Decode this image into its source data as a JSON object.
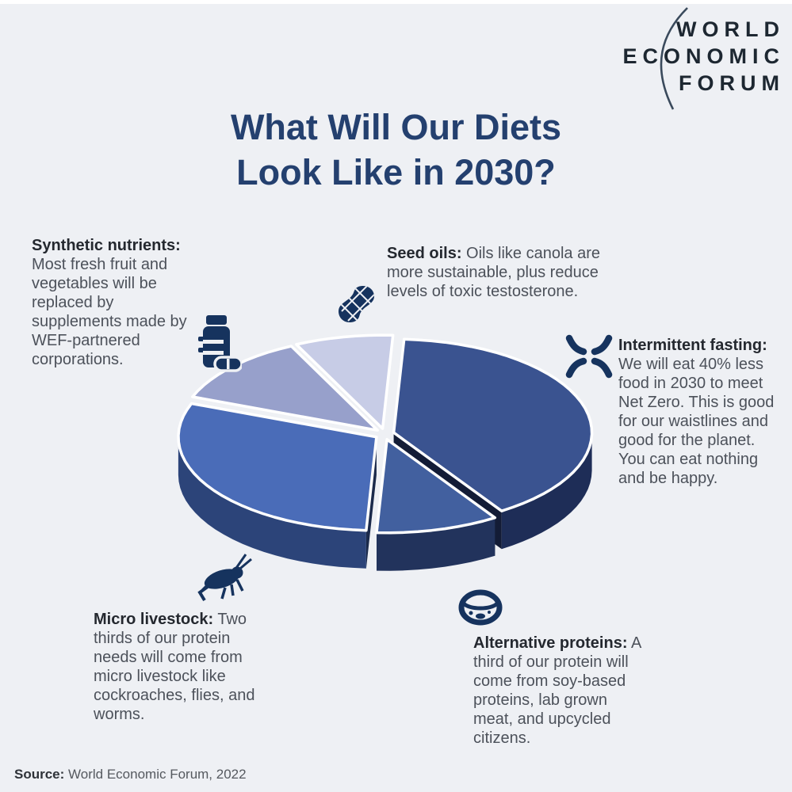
{
  "page": {
    "background": "#eef0f4"
  },
  "logo": {
    "line1": "WORLD",
    "line2": "ECONOMIC",
    "line3": "FORUM",
    "color": "#1d2731"
  },
  "title": {
    "line1": "What Will Our Diets",
    "line2": "Look Like in 2030?",
    "color": "#24406f"
  },
  "annotations": {
    "synthetic": {
      "label": "Synthetic nutrients:",
      "text": " Most fresh fruit and vegetables will be replaced by supplements made by WEF-partnered corporations.",
      "icon": "pill-bottle-icon"
    },
    "seed_oils": {
      "label": "Seed oils:",
      "text": " Oils like canola are more sustainable, plus reduce levels of toxic testosterone.",
      "icon": "peanut-icon"
    },
    "fasting": {
      "label": "Intermittent fasting:",
      "text": " We will eat 40% less food in 2030 to meet Net Zero. This is good for our waistlines and good for the planet. You can eat nothing and be happy.",
      "icon": "fasting-cross-icon"
    },
    "micro_livestock": {
      "label": "Micro livestock:",
      "text": " Two thirds of our protein needs will come from micro livestock like cockroaches, flies, and worms.",
      "icon": "cricket-icon"
    },
    "alt_proteins": {
      "label": "Alternative proteins:",
      "text": " A third of our protein will come from soy-based proteins, lab grown meat, and upcycled citizens.",
      "icon": "petri-dish-icon"
    }
  },
  "source": {
    "label": "Source:",
    "text": " World Economic Forum, 2022"
  },
  "icon_color": "#16335e",
  "chart_data": {
    "type": "pie",
    "style": "3d-exploded",
    "title": "What Will Our Diets Look Like in 2030?",
    "labels": [
      "Intermittent fasting",
      "Alternative proteins",
      "Micro livestock",
      "Synthetic nutrients",
      "Seed oils"
    ],
    "values": [
      40,
      10,
      30,
      12,
      8
    ],
    "value_note": "percent shares estimated from slice angles; no numeric labels printed on chart",
    "start_angle_deg": 3,
    "face_colors": [
      "#3a5390",
      "#42609f",
      "#4a6cb8",
      "#97a0cb",
      "#c7cce6"
    ],
    "wall_colors": [
      "#1e2d57",
      "#22335c",
      "#2c4479",
      "#5a628f",
      "#8e93b3"
    ],
    "gap_color": "#ffffff",
    "legend": "none"
  }
}
